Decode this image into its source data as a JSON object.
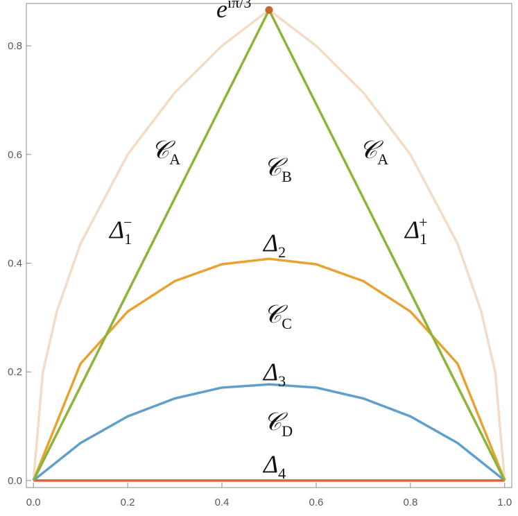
{
  "chart_data": {
    "type": "line",
    "xlim": [
      -0.015,
      1.015
    ],
    "ylim": [
      -0.013,
      0.878
    ],
    "xticks": [
      {
        "value": 0,
        "label": "0.0"
      },
      0.2,
      0.4,
      0.6,
      0.8,
      {
        "value": 1,
        "label": "1.0"
      }
    ],
    "yticks": [
      {
        "value": 0,
        "label": "0.0"
      },
      0.2,
      0.4,
      0.6,
      0.8
    ],
    "series": [
      {
        "color": "#f2dcc6",
        "x": [
          0,
          0.02,
          0.05,
          0.1,
          0.2,
          0.3,
          0.4,
          0.5,
          0.6,
          0.7,
          0.8,
          0.9,
          0.95,
          0.98,
          1
        ],
        "values": [
          0,
          0.199,
          0.312,
          0.436,
          0.6,
          0.714,
          0.8,
          0.866,
          0.8,
          0.714,
          0.6,
          0.436,
          0.312,
          0.199,
          0
        ]
      },
      {
        "color": "#e8a232",
        "x": [
          0,
          0.1,
          0.2,
          0.3,
          0.4,
          0.5,
          0.6,
          0.7,
          0.8,
          0.9,
          1
        ],
        "values": [
          0,
          0.215,
          0.311,
          0.367,
          0.398,
          0.408,
          0.398,
          0.367,
          0.311,
          0.215,
          0
        ]
      },
      {
        "color": "#5e9fcb",
        "x": [
          0,
          0.1,
          0.2,
          0.3,
          0.4,
          0.5,
          0.6,
          0.7,
          0.8,
          0.9,
          1
        ],
        "values": [
          0,
          0.069,
          0.118,
          0.151,
          0.171,
          0.177,
          0.171,
          0.151,
          0.118,
          0.069,
          0
        ]
      },
      {
        "color": "#e0603a",
        "x": [
          0,
          1
        ],
        "values": [
          0,
          0
        ]
      },
      {
        "color": "#8cb43a",
        "x": [
          0,
          0.5,
          1
        ],
        "values": [
          0,
          0.866,
          0
        ]
      }
    ],
    "point": {
      "color": "#c8632a",
      "x": 0.5,
      "y": 0.866
    },
    "annotations": [
      {
        "text": "e",
        "sup": "iπ/3"
      },
      {
        "text": "𝒞",
        "sub": "A"
      },
      {
        "text": "𝒞",
        "sub": "A"
      },
      {
        "text": "𝒞",
        "sub": "B"
      },
      {
        "text": "Δ",
        "sub": "1",
        "sup": "−"
      },
      {
        "text": "Δ",
        "sub": "1",
        "sup": "+"
      },
      {
        "text": "Δ",
        "sub": "2"
      },
      {
        "text": "𝒞",
        "sub": "C"
      },
      {
        "text": "Δ",
        "sub": "3"
      },
      {
        "text": "𝒞",
        "sub": "D"
      },
      {
        "text": "Δ",
        "sub": "4"
      }
    ]
  }
}
